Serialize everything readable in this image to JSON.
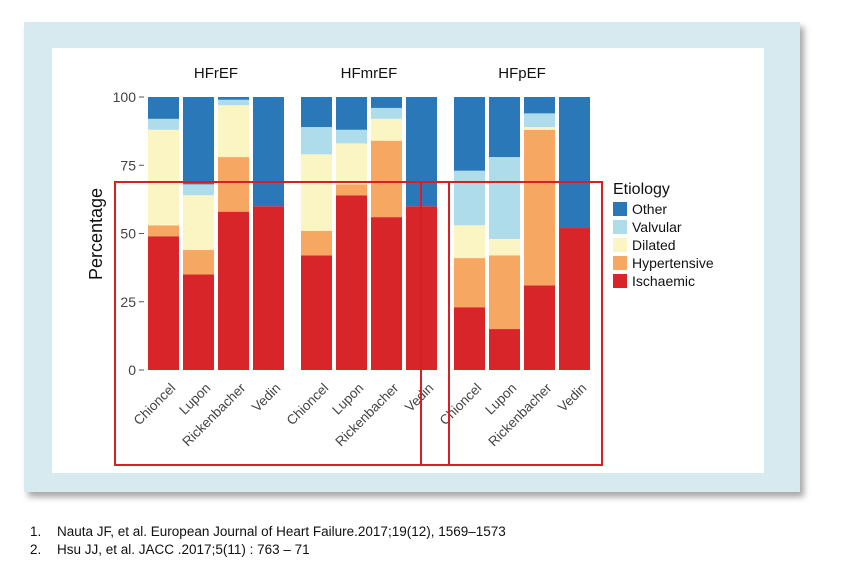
{
  "chart_data": {
    "type": "bar",
    "stacked": true,
    "ylabel": "Percentage",
    "ylim": [
      0,
      100
    ],
    "yticks": [
      0,
      25,
      50,
      75,
      100
    ],
    "legend": {
      "title": "Etiology",
      "position": "right",
      "entries": [
        "Other",
        "Valvular",
        "Dilated",
        "Hypertensive",
        "Ischaemic"
      ]
    },
    "colors": {
      "Ischaemic": "#d7252a",
      "Hypertensive": "#f6a862",
      "Dilated": "#fbf5c3",
      "Valvular": "#aedcea",
      "Other": "#2a78b8"
    },
    "panels": [
      {
        "title": "HFrEF",
        "categories": [
          "Chioncel",
          "Lupon",
          "Rickenbacher",
          "Vedin"
        ],
        "series": [
          {
            "name": "Ischaemic",
            "values": [
              49,
              35,
              58,
              60
            ]
          },
          {
            "name": "Hypertensive",
            "values": [
              4,
              9,
              20,
              0
            ]
          },
          {
            "name": "Dilated",
            "values": [
              35,
              20,
              19,
              0
            ]
          },
          {
            "name": "Valvular",
            "values": [
              4,
              4,
              2,
              0
            ]
          },
          {
            "name": "Other",
            "values": [
              8,
              32,
              1,
              40
            ]
          }
        ]
      },
      {
        "title": "HFmrEF",
        "categories": [
          "Chioncel",
          "Lupon",
          "Rickenbacher",
          "Vedin"
        ],
        "series": [
          {
            "name": "Ischaemic",
            "values": [
              42,
              64,
              56,
              60
            ]
          },
          {
            "name": "Hypertensive",
            "values": [
              9,
              4,
              28,
              0
            ]
          },
          {
            "name": "Dilated",
            "values": [
              28,
              15,
              8,
              0
            ]
          },
          {
            "name": "Valvular",
            "values": [
              10,
              5,
              4,
              0
            ]
          },
          {
            "name": "Other",
            "values": [
              11,
              12,
              4,
              40
            ]
          }
        ]
      },
      {
        "title": "HFpEF",
        "categories": [
          "Chioncel",
          "Lupon",
          "Rickenbacher",
          "Vedin"
        ],
        "series": [
          {
            "name": "Ischaemic",
            "values": [
              23,
              15,
              31,
              52
            ]
          },
          {
            "name": "Hypertensive",
            "values": [
              18,
              27,
              57,
              0
            ]
          },
          {
            "name": "Dilated",
            "values": [
              12,
              6,
              1,
              0
            ]
          },
          {
            "name": "Valvular",
            "values": [
              20,
              30,
              5,
              0
            ]
          },
          {
            "name": "Other",
            "values": [
              27,
              22,
              6,
              48
            ]
          }
        ]
      }
    ],
    "highlights": [
      {
        "panels": [
          "HFrEF",
          "HFmrEF"
        ],
        "color": "#d81f26"
      },
      {
        "panels": [
          "HFpEF"
        ],
        "color": "#d81f26"
      }
    ]
  },
  "references": [
    {
      "num": "1.",
      "text": "Nauta JF, et al. European Journal of Heart Failure.2017;19(12), 1569–1573"
    },
    {
      "num": "2.",
      "text": "Hsu JJ, et al. JACC .2017;5(11) : 763 – 71"
    }
  ]
}
